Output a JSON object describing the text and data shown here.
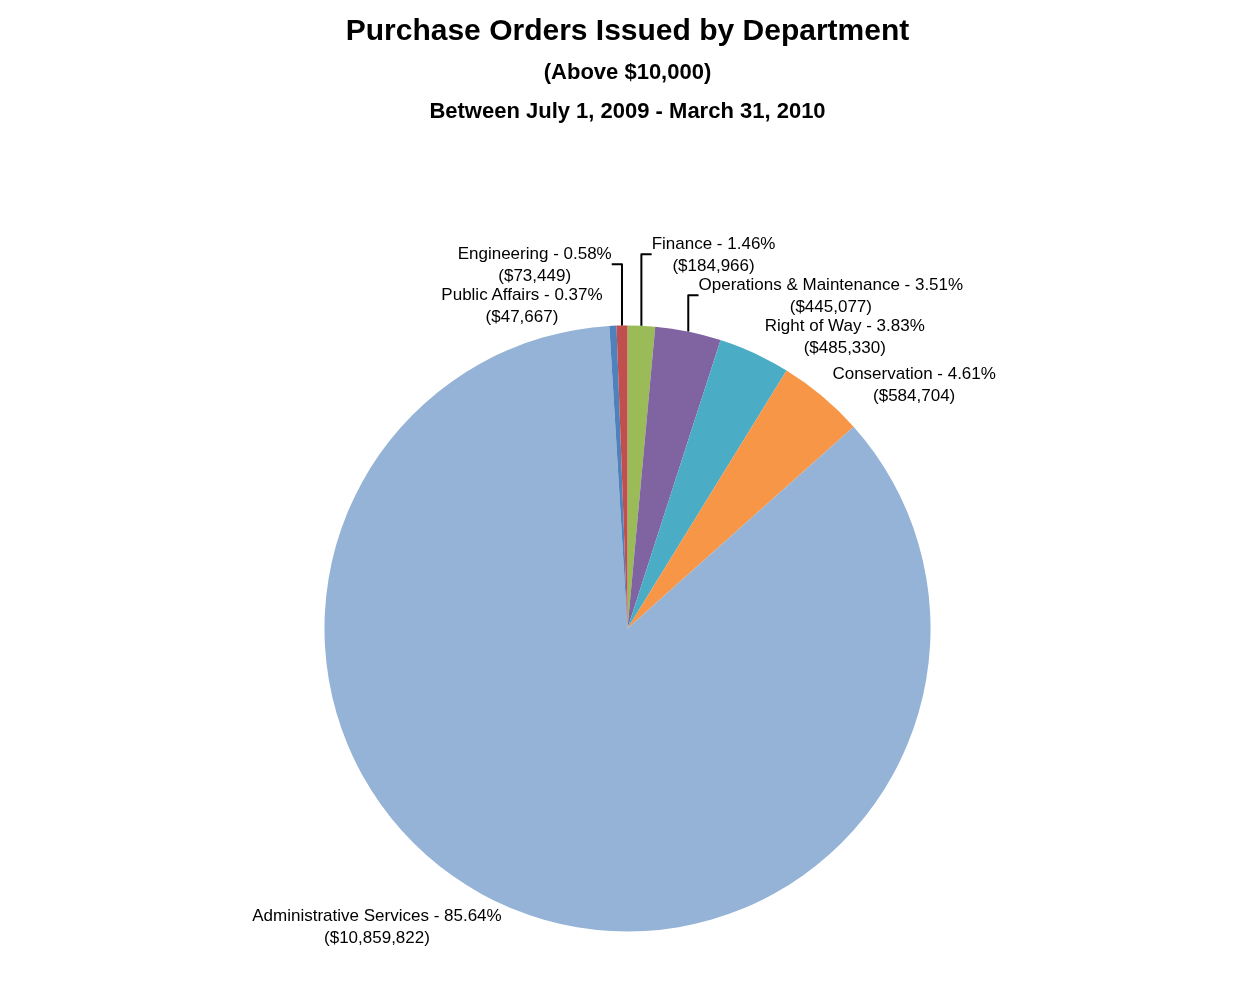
{
  "chart_data": {
    "type": "pie",
    "title": "Purchase Orders Issued by Department",
    "subtitle": "(Above $10,000)\nBetween July 1, 2009 - March 31, 2010",
    "categories": [
      "Finance",
      "Operations & Maintenance",
      "Right of Way",
      "Conservation",
      "Administrative Services",
      "Public Affairs",
      "Engineering"
    ],
    "values": [
      184966,
      445077,
      485330,
      584704,
      10859822,
      47667,
      73449
    ],
    "value_labels": [
      "1.46%\n($184,966)",
      "3.51%\n($445,077)",
      "3.83%\n($485,330)",
      "4.61%\n($584,704)",
      "85.64%\n($10,859,822)",
      "0.37%\n($47,667)",
      "0.58%\n($73,449)"
    ],
    "colors": [
      "#9bbb59",
      "#8064a2",
      "#4bacc6",
      "#f79646",
      "#95b3d7",
      "#4f81bd",
      "#c0504d"
    ],
    "legend": false
  }
}
